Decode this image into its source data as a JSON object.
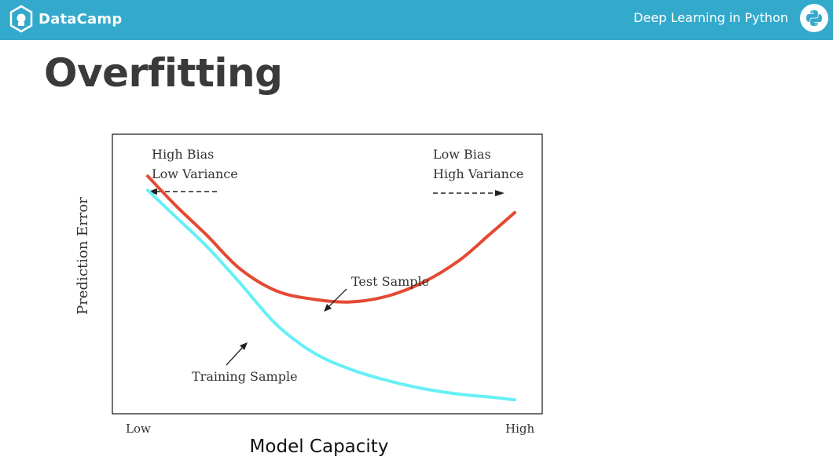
{
  "header": {
    "brand_name": "DataCamp",
    "brand_icon": "datacamp-logo-icon",
    "course_title": "Deep Learning in Python",
    "course_icon": "python-logo-icon",
    "bg_color": "#33aacc"
  },
  "slide": {
    "title": "Overfitting"
  },
  "chart_data": {
    "type": "line",
    "xlabel": "Model Capacity",
    "ylabel": "Prediction Error",
    "x_ticks": [
      "Low",
      "High"
    ],
    "grid": false,
    "annotations": {
      "left": [
        "High Bias",
        "Low Variance"
      ],
      "right": [
        "Low Bias",
        "High Variance"
      ]
    },
    "series": [
      {
        "name": "Test Sample",
        "color": "#e34a33",
        "x": [
          0,
          0.08,
          0.16,
          0.25,
          0.35,
          0.45,
          0.55,
          0.65,
          0.75,
          0.85,
          0.93,
          1.0
        ],
        "y": [
          0.85,
          0.74,
          0.64,
          0.52,
          0.44,
          0.41,
          0.4,
          0.42,
          0.47,
          0.55,
          0.64,
          0.72
        ]
      },
      {
        "name": "Training Sample",
        "color": "#66f0f5",
        "x": [
          0,
          0.08,
          0.16,
          0.25,
          0.35,
          0.45,
          0.55,
          0.65,
          0.75,
          0.85,
          0.93,
          1.0
        ],
        "y": [
          0.8,
          0.7,
          0.6,
          0.47,
          0.32,
          0.22,
          0.16,
          0.12,
          0.09,
          0.07,
          0.06,
          0.05
        ]
      }
    ]
  }
}
